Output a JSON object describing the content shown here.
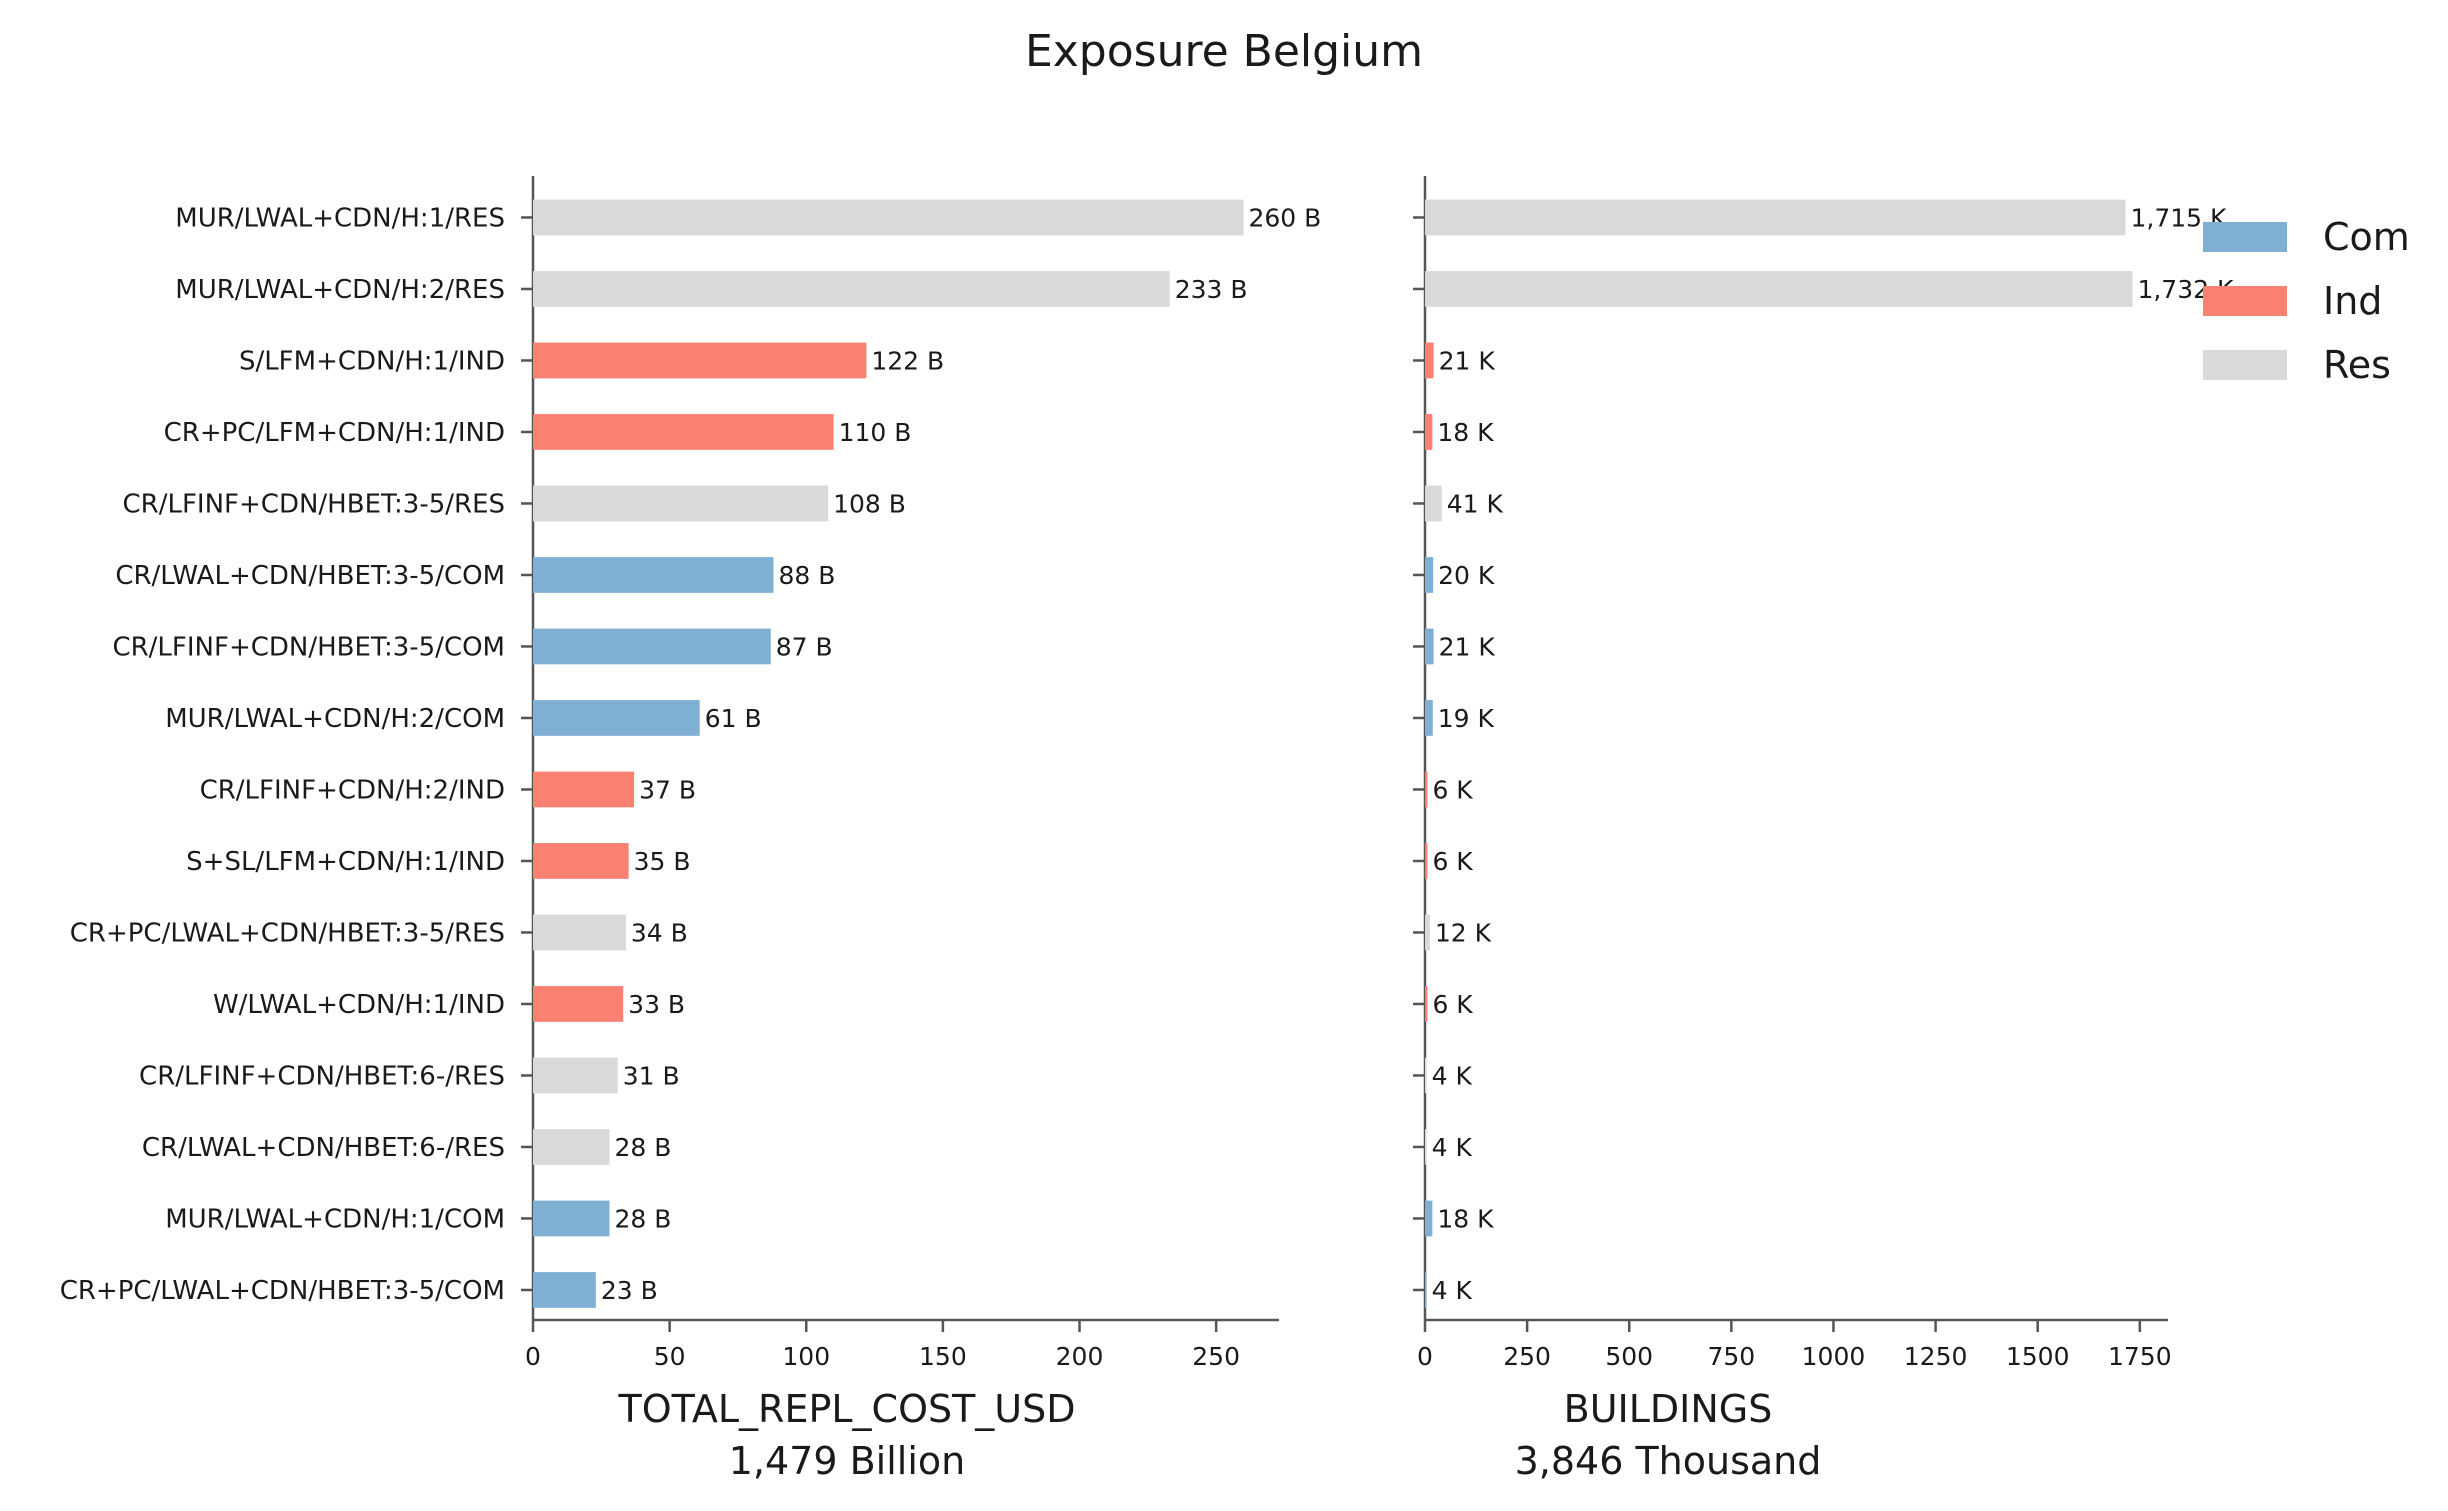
{
  "chart_data": {
    "type": "bar",
    "orientation": "horizontal",
    "title": "Exposure Belgium",
    "categories": [
      "MUR/LWAL+CDN/H:1/RES",
      "MUR/LWAL+CDN/H:2/RES",
      "S/LFM+CDN/H:1/IND",
      "CR+PC/LFM+CDN/H:1/IND",
      "CR/LFINF+CDN/HBET:3-5/RES",
      "CR/LWAL+CDN/HBET:3-5/COM",
      "CR/LFINF+CDN/HBET:3-5/COM",
      "MUR/LWAL+CDN/H:2/COM",
      "CR/LFINF+CDN/H:2/IND",
      "S+SL/LFM+CDN/H:1/IND",
      "CR+PC/LWAL+CDN/HBET:3-5/RES",
      "W/LWAL+CDN/H:1/IND",
      "CR/LFINF+CDN/HBET:6-/RES",
      "CR/LWAL+CDN/HBET:6-/RES",
      "MUR/LWAL+CDN/H:1/COM",
      "CR+PC/LWAL+CDN/HBET:3-5/COM"
    ],
    "occupancy": [
      "Res",
      "Res",
      "Ind",
      "Ind",
      "Res",
      "Com",
      "Com",
      "Com",
      "Ind",
      "Ind",
      "Res",
      "Ind",
      "Res",
      "Res",
      "Com",
      "Com"
    ],
    "colors": {
      "Com": "#7fb0d3",
      "Ind": "#fa8072",
      "Res": "#d9d9d9"
    },
    "legend": {
      "position": "top-right",
      "entries": [
        "Com",
        "Ind",
        "Res"
      ]
    },
    "panels": [
      {
        "xlabel": "TOTAL_REPL_COST_USD",
        "subtitle": "1,479 Billion",
        "values": [
          260,
          233,
          122,
          110,
          108,
          88,
          87,
          61,
          37,
          35,
          34,
          33,
          31,
          28,
          28,
          23
        ],
        "labels": [
          "260 B",
          "233 B",
          "122 B",
          "110 B",
          "108 B",
          "88 B",
          "87 B",
          "61 B",
          "37 B",
          "35 B",
          "34 B",
          "33 B",
          "31 B",
          "28 B",
          "28 B",
          "23 B"
        ],
        "xlim": [
          0,
          273
        ],
        "ticks": [
          0,
          50,
          100,
          150,
          200,
          250
        ]
      },
      {
        "xlabel": "BUILDINGS",
        "subtitle": "3,846 Thousand",
        "values": [
          1715,
          1732,
          21,
          18,
          41,
          20,
          21,
          19,
          6,
          6,
          12,
          6,
          4,
          4,
          18,
          4
        ],
        "labels": [
          "1,715 K",
          "1,732 K",
          "21 K",
          "18 K",
          "41 K",
          "20 K",
          "21 K",
          "19 K",
          "6 K",
          "6 K",
          "12 K",
          "6 K",
          "4 K",
          "4 K",
          "18 K",
          "4 K"
        ],
        "xlim": [
          0,
          1819
        ],
        "ticks": [
          0,
          250,
          500,
          750,
          1000,
          1250,
          1500,
          1750
        ]
      }
    ]
  }
}
